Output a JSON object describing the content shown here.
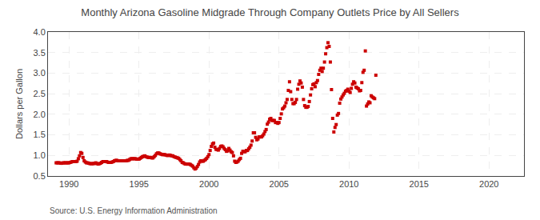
{
  "chart_data": {
    "type": "scatter",
    "title": "Monthly Arizona Gasoline Midgrade Through Company Outlets Price by All Sellers",
    "ylabel": "Dollars per Gallon",
    "annotations": [
      "Source: U.S. Energy Information Administration"
    ],
    "xlim": [
      1988.5,
      2022.5
    ],
    "ylim": [
      0.5,
      4.0
    ],
    "xticks": [
      1990,
      1995,
      2000,
      2005,
      2010,
      2015,
      2020
    ],
    "yticks": [
      0.5,
      {
        "value": 1.0,
        "label": "1.0"
      },
      1.5,
      {
        "value": 2.0,
        "label": "2.0"
      },
      2.5,
      {
        "value": 3.0,
        "label": "3.0"
      },
      3.5,
      {
        "value": 4.0,
        "label": "4.0"
      }
    ],
    "grid": true,
    "color": "#CC0000",
    "marker": "square",
    "x": [
      1989.083,
      1989.167,
      1989.25,
      1989.333,
      1989.417,
      1989.5,
      1989.583,
      1989.667,
      1989.75,
      1989.833,
      1989.917,
      1990.0,
      1990.083,
      1990.167,
      1990.25,
      1990.333,
      1990.417,
      1990.5,
      1990.583,
      1990.667,
      1990.75,
      1990.833,
      1990.917,
      1991.0,
      1991.083,
      1991.167,
      1991.25,
      1991.333,
      1991.417,
      1991.5,
      1991.583,
      1991.667,
      1991.75,
      1991.833,
      1991.917,
      1992.0,
      1992.083,
      1992.167,
      1992.25,
      1992.333,
      1992.417,
      1992.5,
      1992.583,
      1992.667,
      1992.75,
      1992.833,
      1992.917,
      1993.0,
      1993.083,
      1993.167,
      1993.25,
      1993.333,
      1993.417,
      1993.5,
      1993.583,
      1993.667,
      1993.75,
      1993.833,
      1993.917,
      1994.0,
      1994.083,
      1994.167,
      1994.25,
      1994.333,
      1994.417,
      1994.5,
      1994.583,
      1994.667,
      1994.75,
      1994.833,
      1994.917,
      1995.0,
      1995.083,
      1995.167,
      1995.25,
      1995.333,
      1995.417,
      1995.5,
      1995.583,
      1995.667,
      1995.75,
      1995.833,
      1995.917,
      1996.0,
      1996.083,
      1996.167,
      1996.25,
      1996.333,
      1996.417,
      1996.5,
      1996.583,
      1996.667,
      1996.75,
      1996.833,
      1996.917,
      1997.0,
      1997.083,
      1997.167,
      1997.25,
      1997.333,
      1997.417,
      1997.5,
      1997.583,
      1997.667,
      1997.75,
      1997.833,
      1997.917,
      1998.0,
      1998.083,
      1998.167,
      1998.25,
      1998.333,
      1998.417,
      1998.5,
      1998.583,
      1998.667,
      1998.75,
      1998.833,
      1998.917,
      1999.0,
      1999.083,
      1999.167,
      1999.25,
      1999.333,
      1999.417,
      1999.5,
      1999.583,
      1999.667,
      1999.75,
      1999.833,
      1999.917,
      2000.0,
      2000.083,
      2000.167,
      2000.25,
      2000.333,
      2000.417,
      2000.5,
      2000.583,
      2000.667,
      2000.75,
      2000.833,
      2000.917,
      2001.0,
      2001.083,
      2001.167,
      2001.25,
      2001.333,
      2001.417,
      2001.5,
      2001.583,
      2001.667,
      2001.75,
      2001.833,
      2001.917,
      2002.0,
      2002.083,
      2002.167,
      2002.25,
      2002.333,
      2002.417,
      2002.5,
      2002.583,
      2002.667,
      2002.75,
      2002.833,
      2002.917,
      2003.0,
      2003.083,
      2003.167,
      2003.25,
      2003.333,
      2003.417,
      2003.5,
      2003.583,
      2003.667,
      2003.75,
      2003.833,
      2003.917,
      2004.0,
      2004.083,
      2004.167,
      2004.25,
      2004.333,
      2004.417,
      2004.5,
      2004.583,
      2004.667,
      2004.75,
      2004.833,
      2004.917,
      2005.0,
      2005.083,
      2005.167,
      2005.25,
      2005.333,
      2005.417,
      2005.5,
      2005.583,
      2005.667,
      2005.75,
      2005.833,
      2005.917,
      2006.0,
      2006.083,
      2006.167,
      2006.25,
      2006.333,
      2006.417,
      2006.5,
      2006.583,
      2006.667,
      2006.75,
      2006.833,
      2006.917,
      2007.0,
      2007.083,
      2007.167,
      2007.25,
      2007.333,
      2007.417,
      2007.5,
      2007.583,
      2007.667,
      2007.75,
      2007.833,
      2007.917,
      2008.0,
      2008.083,
      2008.167,
      2008.25,
      2008.333,
      2008.417,
      2008.5,
      2008.583,
      2008.667,
      2008.75,
      2008.833,
      2008.917,
      2009.0,
      2009.083,
      2009.167,
      2009.25,
      2009.333,
      2009.417,
      2009.5,
      2009.583,
      2009.667,
      2009.75,
      2009.833,
      2009.917,
      2010.0,
      2010.083,
      2010.167,
      2010.25,
      2010.333,
      2010.417,
      2010.5,
      2010.583,
      2010.667,
      2010.75,
      2010.833,
      2010.917,
      2011.0,
      2011.083,
      2011.167,
      2011.25,
      2011.333,
      2011.417,
      2011.5,
      2011.583,
      2011.667,
      2011.75,
      2011.833,
      2011.917
    ],
    "values": [
      0.82,
      0.82,
      0.82,
      0.82,
      0.81,
      0.81,
      0.82,
      0.82,
      0.82,
      0.82,
      0.82,
      0.82,
      0.83,
      0.84,
      0.85,
      0.85,
      0.85,
      0.85,
      0.86,
      0.92,
      0.99,
      1.07,
      1.05,
      0.95,
      0.87,
      0.84,
      0.82,
      0.82,
      0.81,
      0.8,
      0.8,
      0.8,
      0.8,
      0.81,
      0.82,
      0.8,
      0.79,
      0.8,
      0.81,
      0.83,
      0.85,
      0.85,
      0.85,
      0.85,
      0.84,
      0.83,
      0.83,
      0.83,
      0.84,
      0.85,
      0.87,
      0.88,
      0.88,
      0.87,
      0.87,
      0.87,
      0.87,
      0.87,
      0.87,
      0.87,
      0.87,
      0.88,
      0.88,
      0.9,
      0.92,
      0.92,
      0.92,
      0.92,
      0.92,
      0.91,
      0.91,
      0.91,
      0.93,
      0.95,
      0.97,
      0.98,
      0.99,
      0.97,
      0.96,
      0.95,
      0.95,
      0.95,
      0.94,
      0.94,
      0.97,
      1.0,
      1.04,
      1.06,
      1.06,
      1.04,
      1.03,
      1.02,
      1.02,
      1.02,
      1.01,
      1.0,
      1.0,
      1.01,
      1.0,
      0.99,
      0.99,
      0.97,
      0.96,
      0.95,
      0.94,
      0.93,
      0.9,
      0.87,
      0.83,
      0.82,
      0.8,
      0.79,
      0.79,
      0.79,
      0.79,
      0.78,
      0.76,
      0.74,
      0.7,
      0.67,
      0.69,
      0.73,
      0.78,
      0.84,
      0.87,
      0.86,
      0.86,
      0.88,
      0.9,
      0.93,
      0.97,
      1.02,
      1.12,
      1.22,
      1.28,
      1.3,
      1.2,
      1.15,
      1.14,
      1.13,
      1.17,
      1.22,
      1.23,
      1.21,
      1.17,
      1.14,
      1.1,
      1.11,
      1.17,
      1.13,
      1.09,
      1.07,
      0.99,
      0.86,
      0.83,
      0.84,
      0.86,
      0.9,
      0.93,
      1.05,
      1.1,
      1.09,
      1.09,
      1.12,
      1.12,
      1.16,
      1.2,
      1.25,
      1.35,
      1.55,
      1.55,
      1.44,
      1.38,
      1.4,
      1.45,
      1.45,
      1.45,
      1.48,
      1.52,
      1.58,
      1.63,
      1.76,
      1.81,
      1.88,
      1.9,
      1.85,
      1.85,
      1.85,
      1.8,
      1.8,
      1.78,
      1.8,
      1.9,
      2.01,
      2.13,
      2.16,
      2.2,
      2.28,
      2.36,
      2.58,
      2.79,
      2.55,
      2.36,
      2.26,
      2.26,
      2.29,
      2.36,
      2.61,
      2.73,
      2.81,
      2.76,
      2.66,
      2.36,
      2.21,
      2.17,
      2.17,
      2.19,
      2.31,
      2.47,
      2.62,
      2.72,
      2.74,
      2.67,
      2.77,
      2.82,
      2.97,
      3.07,
      3.12,
      3.04,
      3.12,
      3.27,
      3.47,
      3.62,
      3.74,
      3.65,
      3.27,
      2.6,
      1.9,
      1.57,
      1.68,
      1.75,
      1.98,
      2.02,
      2.27,
      2.37,
      2.42,
      2.47,
      2.51,
      2.56,
      2.58,
      2.61,
      2.56,
      2.53,
      2.63,
      2.73,
      2.79,
      2.76,
      2.66,
      2.64,
      2.62,
      2.57,
      2.58,
      2.77,
      3.02,
      3.07,
      3.54,
      2.2,
      2.25,
      2.3,
      2.28,
      2.45,
      2.42,
      2.4,
      2.38,
      2.95
    ]
  }
}
